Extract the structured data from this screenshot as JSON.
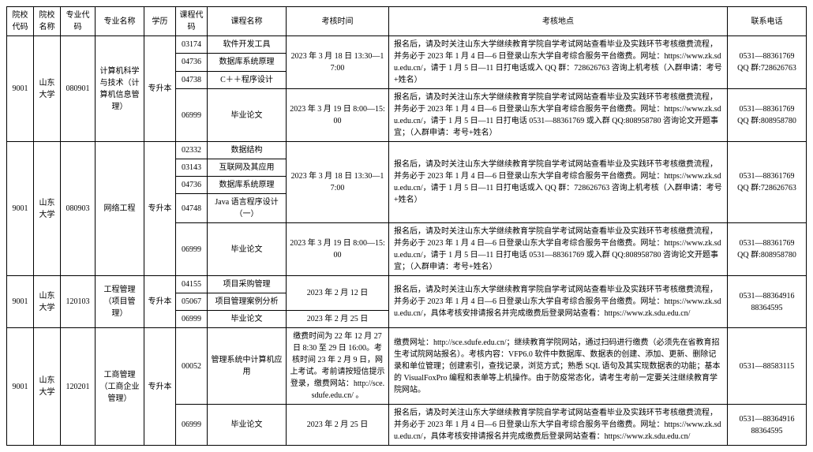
{
  "headers": [
    "院校代码",
    "院校名称",
    "专业代码",
    "专业名称",
    "学历",
    "课程代码",
    "课程名称",
    "考核时间",
    "考核地点",
    "联系电话"
  ],
  "rows": [
    {
      "schoolCode": "9001",
      "schoolName": "山东大学",
      "majorCode": "080901",
      "majorName": "计算机科学与技术（计算机信息管理）",
      "edu": "专升本",
      "courses": [
        {
          "cc": "03174",
          "cn": "软件开发工具",
          "time": "2023 年 3 月 18 日 13:30—17:00",
          "timeSpan": 3,
          "place": "报名后，请及时关注山东大学继续教育学院自学考试网站查看毕业及实践环节考核缴费流程，并务必于 2023 年 1 月 4 日—6 日登录山东大学自考综合服务平台缴费。网址：https://www.zk.sdu.edu.cn/，请于 1 月 5 日—11 日打电话或入 QQ 群：728626763 咨询上机考核（入群申请：考号+姓名）",
          "placeSpan": 3,
          "tel": "0531—88361769\nQQ 群:728626763",
          "telSpan": 3
        },
        {
          "cc": "04736",
          "cn": "数据库系统原理"
        },
        {
          "cc": "04738",
          "cn": "C＋＋程序设计"
        },
        {
          "cc": "06999",
          "cn": "毕业论文",
          "time": "2023 年 3 月 19 日 8:00—15:00",
          "place": "报名后，请及时关注山东大学继续教育学院自学考试网站查看毕业及实践环节考核缴费流程，并务必于 2023 年 1 月 4 日—6 日登录山东大学自考综合服务平台缴费。网址：https://www.zk.sdu.edu.cn/，请于 1 月 5 日—11 日打电话 0531—88361769 或入群 QQ:808958780 咨询论文开题事宜；（入群申请：考号+姓名）",
          "tel": "0531—88361769\nQQ 群:808958780"
        }
      ]
    },
    {
      "schoolCode": "9001",
      "schoolName": "山东大学",
      "majorCode": "080903",
      "majorName": "网络工程",
      "edu": "专升本",
      "courses": [
        {
          "cc": "02332",
          "cn": "数据结构",
          "time": "2023 年 3 月 18 日 13:30—17:00",
          "timeSpan": 4,
          "place": "报名后，请及时关注山东大学继续教育学院自学考试网站查看毕业及实践环节考核缴费流程，并务必于 2023 年 1 月 4 日—6 日登录山东大学自考综合服务平台缴费。网址：https://www.zk.sdu.edu.cn/，请于 1 月 5 日—11 日打电话或入 QQ 群：728626763 咨询上机考核（入群申请：考号+姓名）",
          "placeSpan": 4,
          "tel": "0531—88361769\nQQ 群:728626763",
          "telSpan": 4
        },
        {
          "cc": "03143",
          "cn": "互联网及其应用"
        },
        {
          "cc": "04736",
          "cn": "数据库系统原理"
        },
        {
          "cc": "04748",
          "cn": "Java 语言程序设计（一）"
        },
        {
          "cc": "06999",
          "cn": "毕业论文",
          "time": "2023 年 3 月 19 日 8:00—15:00",
          "place": "报名后，请及时关注山东大学继续教育学院自学考试网站查看毕业及实践环节考核缴费流程，并务必于 2023 年 1 月 4 日—6 日登录山东大学自考综合服务平台缴费。网址：https://www.zk.sdu.edu.cn/，请于 1 月 5 日—11 日打电话 0531—88361769 或入群 QQ:808958780 咨询论文开题事宜；（入群申请：考号+姓名）",
          "tel": "0531—88361769\nQQ 群:808958780"
        }
      ]
    },
    {
      "schoolCode": "9001",
      "schoolName": "山东大学",
      "majorCode": "120103",
      "majorName": "工程管理（项目管理）",
      "edu": "专升本",
      "courses": [
        {
          "cc": "04155",
          "cn": "项目采购管理",
          "time": "2023 年 2 月 12 日",
          "timeSpan": 2,
          "place": "报名后，请及时关注山东大学继续教育学院自学考试网站查看毕业及实践环节考核缴费流程，并务必于 2023 年 1 月 4 日—6 日登录山东大学自考综合服务平台缴费。网址：https://www.zk.sdu.edu.cn/，具体考核安排请报名并完成缴费后登录网站查看：https://www.zk.sdu.edu.cn/",
          "placeSpan": 3,
          "tel": "0531—88364916\n88364595",
          "telSpan": 3
        },
        {
          "cc": "05067",
          "cn": "项目管理案例分析"
        },
        {
          "cc": "06999",
          "cn": "毕业论文",
          "time": "2023 年 2 月 25 日"
        }
      ]
    },
    {
      "schoolCode": "9001",
      "schoolName": "山东大学",
      "majorCode": "120201",
      "majorName": "工商管理（工商企业管理）",
      "edu": "专升本",
      "courses": [
        {
          "cc": "00052",
          "cn": "管理系统中计算机应用",
          "time": "缴费时间为 22 年 12 月 27 日 8:30 至 29 日 16:00。考核时间 23 年 2 月 9 日，网上考试。考前请按短信提示登录，缴费网站：http://sce.sdufe.edu.cn/ 。",
          "place": "缴费网址：http://sce.sdufe.edu.cn/；继续教育学院网站，通过扫码进行缴费（必须先在省教育招生考试院网站报名）。考核内容：VFP6.0 软件中数据库、数据表的创建、添加、更新、删除记录和单位管理；创建索引，查找记录，浏览方式；熟悉 SQL 语句及其实现数据表的功能；基本的 VisualFoxPro 编程和表单等上机操作。由于防疫常态化，请考生考前一定要关注继续教育学院网站。",
          "tel": "0531—88583115"
        },
        {
          "cc": "06999",
          "cn": "毕业论文",
          "time": "2023 年 2 月 25 日",
          "place": "报名后，请及时关注山东大学继续教育学院自学考试网站查看毕业及实践环节考核缴费流程，并务必于 2023 年 1 月 4 日—6 日登录山东大学自考综合服务平台缴费。网址：https://www.zk.sdu.edu.cn/，具体考核安排请报名并完成缴费后登录网站查看：https://www.zk.sdu.edu.cn/",
          "tel": "0531—88364916\n88364595"
        }
      ]
    }
  ]
}
